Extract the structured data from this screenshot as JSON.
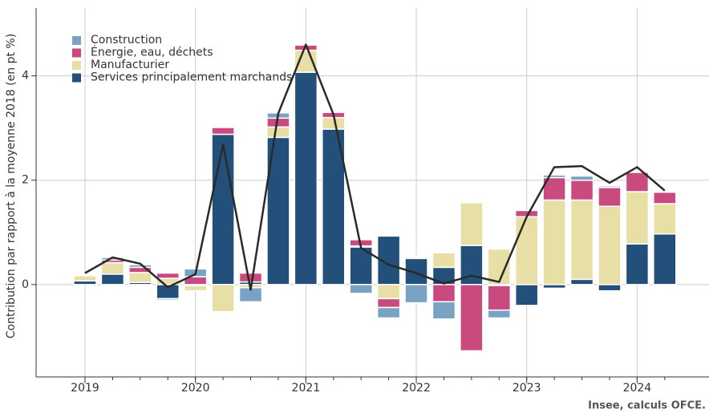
{
  "chart_data": {
    "type": "stacked_bar_line",
    "y_label": "Contribution par rapport à la moyenne 2018 (en pt %)",
    "source": "Insee, calculs OFCE.",
    "categories": [
      "2019",
      null,
      null,
      null,
      "2020",
      null,
      null,
      null,
      "2021",
      null,
      null,
      null,
      "2022",
      null,
      null,
      null,
      "2023",
      null,
      null,
      null,
      "2024",
      null
    ],
    "series": [
      {
        "name": "Services principalement marchands",
        "color": "#23507a",
        "values": [
          0.07,
          0.2,
          0.04,
          -0.27,
          -0.02,
          2.88,
          0.05,
          2.82,
          4.07,
          2.98,
          0.72,
          0.93,
          0.5,
          0.33,
          0.75,
          -0.02,
          -0.4,
          -0.07,
          0.1,
          -0.12,
          0.78,
          0.97
        ]
      },
      {
        "name": "Manufacturier",
        "color": "#e8dfa7",
        "values": [
          0.1,
          0.22,
          0.19,
          0.12,
          -0.1,
          -0.52,
          -0.06,
          0.2,
          0.42,
          0.22,
          0.02,
          -0.27,
          0.03,
          0.28,
          0.82,
          0.68,
          1.3,
          1.62,
          1.52,
          1.5,
          1.0,
          0.58
        ]
      },
      {
        "name": "Énergie, eau, déchets",
        "color": "#c94a7f",
        "values": [
          0.02,
          0.05,
          0.1,
          0.1,
          0.15,
          0.13,
          0.17,
          0.17,
          0.1,
          0.1,
          0.12,
          -0.17,
          0.02,
          -0.33,
          -1.27,
          -0.47,
          0.12,
          0.43,
          0.38,
          0.36,
          0.37,
          0.22
        ]
      },
      {
        "name": "Construction",
        "color": "#7aa3c3",
        "values": [
          0.02,
          0.05,
          0.05,
          -0.03,
          0.15,
          0.0,
          -0.27,
          0.1,
          0.0,
          0.0,
          -0.17,
          -0.2,
          -0.35,
          -0.33,
          0.0,
          -0.15,
          0.0,
          0.05,
          0.08,
          0.03,
          0.0,
          0.0
        ]
      }
    ],
    "line": {
      "color": "#2a2a2a",
      "values": [
        0.22,
        0.52,
        0.4,
        -0.05,
        0.2,
        2.68,
        -0.1,
        3.28,
        4.6,
        3.26,
        0.7,
        0.38,
        0.22,
        0.02,
        0.17,
        0.05,
        1.3,
        2.25,
        2.27,
        1.95,
        2.25,
        1.8
      ]
    },
    "ylim": [
      -1.77,
      5.3
    ],
    "yticks": [
      0,
      2,
      4
    ],
    "grid": true,
    "legend": "top-left"
  }
}
